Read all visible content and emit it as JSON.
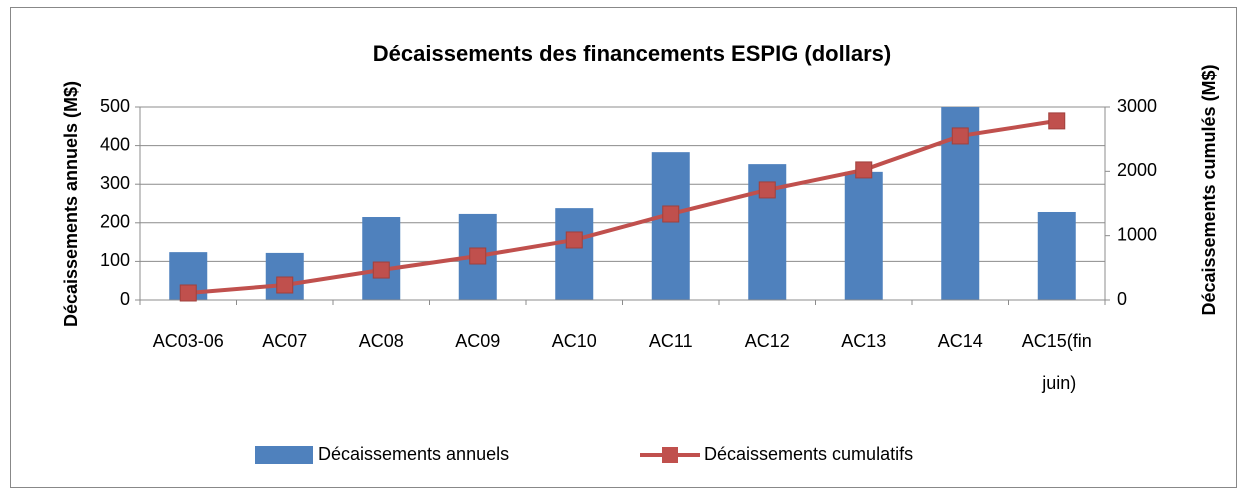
{
  "chart_data": {
    "type": "bar-line",
    "title": "Décaissements des financements ESPIG (dollars)",
    "y_label": "Décaissements annuels (M$)",
    "y2_label": "Décaissements cumulés (M$)",
    "categories": [
      "AC03-06",
      "AC07",
      "AC08",
      "AC09",
      "AC10",
      "AC11",
      "AC12",
      "AC13",
      "AC14",
      "AC15(fin juin)"
    ],
    "series": [
      {
        "name": "Décaissements annuels",
        "type": "bar",
        "color": "#4f81bd",
        "values": [
          124,
          122,
          215,
          223,
          238,
          383,
          352,
          332,
          500,
          228
        ]
      },
      {
        "name": "Décaissements cumulatifs",
        "type": "line",
        "axis": "y2",
        "color": "#c0504d",
        "values": [
          109,
          233,
          466,
          684,
          933,
          1337,
          1711,
          2022,
          2550,
          2784
        ]
      }
    ],
    "ylim": [
      0,
      500
    ],
    "yticks": [
      0,
      100,
      200,
      300,
      400,
      500
    ],
    "y2lim": [
      0,
      3000
    ],
    "y2ticks": [
      0,
      1000,
      2000,
      3000
    ],
    "grid": true,
    "legend": "bottom"
  }
}
